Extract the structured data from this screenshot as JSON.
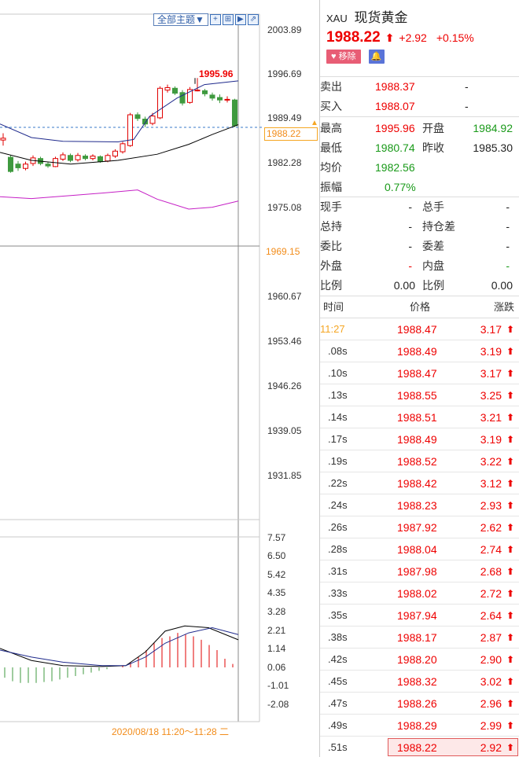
{
  "toolbar": {
    "theme_label": "全部主题▼",
    "icons": [
      "grid-icon",
      "split-icon",
      "play-icon",
      "export-icon"
    ]
  },
  "price_axis": [
    "2003.89",
    "1996.69",
    "1989.49",
    "1982.28",
    "1975.08",
    "1960.67",
    "1953.46",
    "1946.26",
    "1939.05",
    "1931.85"
  ],
  "current_price_tag": "1988.22",
  "crosshair_price_tag": "1969.15",
  "high_marker": "1995.96",
  "indicator_axis": [
    "7.57",
    "6.50",
    "5.42",
    "4.35",
    "3.28",
    "2.21",
    "1.14",
    "0.06",
    "-1.01",
    "-2.08"
  ],
  "date_range": "2020/08/18 11:20～11:28 二",
  "quote": {
    "code": "XAU",
    "name": "现货黄金",
    "price": "1988.22",
    "change": "+2.92",
    "change_pct": "+0.15%",
    "remove_label": "移除",
    "bell_icon": "bell-icon"
  },
  "book": [
    {
      "label": "卖出",
      "value": "1988.37",
      "extra": "-"
    },
    {
      "label": "买入",
      "value": "1988.07",
      "extra": "-"
    }
  ],
  "stats": {
    "high_label": "最高",
    "high": "1995.96",
    "open_label": "开盘",
    "open": "1984.92",
    "low_label": "最低",
    "low": "1980.74",
    "prev_label": "昨收",
    "prev": "1985.30",
    "avg_label": "均价",
    "avg": "1982.56",
    "amp_label": "振幅",
    "amp": "0.77%"
  },
  "volume": {
    "now_label": "现手",
    "now": "-",
    "total_label": "总手",
    "total": "-",
    "hold_label": "总持",
    "hold": "-",
    "diff_label": "持仓差",
    "diff": "-",
    "ratio_label": "委比",
    "ratio": "-",
    "weicha_label": "委差",
    "weicha": "-",
    "outer_label": "外盘",
    "outer": "-",
    "inner_label": "内盘",
    "inner": "-",
    "ratio2_label": "比例",
    "ratio2": "0.00",
    "ratio3_label": "比例",
    "ratio3": "0.00"
  },
  "ticks_header": {
    "time": "时间",
    "price": "价格",
    "change": "涨跌"
  },
  "ticks": [
    {
      "time": "11:27",
      "price": "1988.47",
      "change": "3.17"
    },
    {
      "time": ".08s",
      "price": "1988.49",
      "change": "3.19"
    },
    {
      "time": ".10s",
      "price": "1988.47",
      "change": "3.17"
    },
    {
      "time": ".13s",
      "price": "1988.55",
      "change": "3.25"
    },
    {
      "time": ".14s",
      "price": "1988.51",
      "change": "3.21"
    },
    {
      "time": ".17s",
      "price": "1988.49",
      "change": "3.19"
    },
    {
      "time": ".19s",
      "price": "1988.52",
      "change": "3.22"
    },
    {
      "time": ".22s",
      "price": "1988.42",
      "change": "3.12"
    },
    {
      "time": ".24s",
      "price": "1988.23",
      "change": "2.93"
    },
    {
      "time": ".26s",
      "price": "1987.92",
      "change": "2.62"
    },
    {
      "time": ".28s",
      "price": "1988.04",
      "change": "2.74"
    },
    {
      "time": ".31s",
      "price": "1987.98",
      "change": "2.68"
    },
    {
      "time": ".33s",
      "price": "1988.02",
      "change": "2.72"
    },
    {
      "time": ".35s",
      "price": "1987.94",
      "change": "2.64"
    },
    {
      "time": ".38s",
      "price": "1988.17",
      "change": "2.87"
    },
    {
      "time": ".42s",
      "price": "1988.20",
      "change": "2.90"
    },
    {
      "time": ".45s",
      "price": "1988.32",
      "change": "3.02"
    },
    {
      "time": ".47s",
      "price": "1988.26",
      "change": "2.96"
    },
    {
      "time": ".49s",
      "price": "1988.29",
      "change": "2.99"
    },
    {
      "time": ".51s",
      "price": "1988.22",
      "change": "2.92"
    }
  ],
  "colors": {
    "up": "#e00000",
    "down": "#1a9a1a",
    "accent": "#f5a623",
    "theme": "#2f5ea8"
  }
}
